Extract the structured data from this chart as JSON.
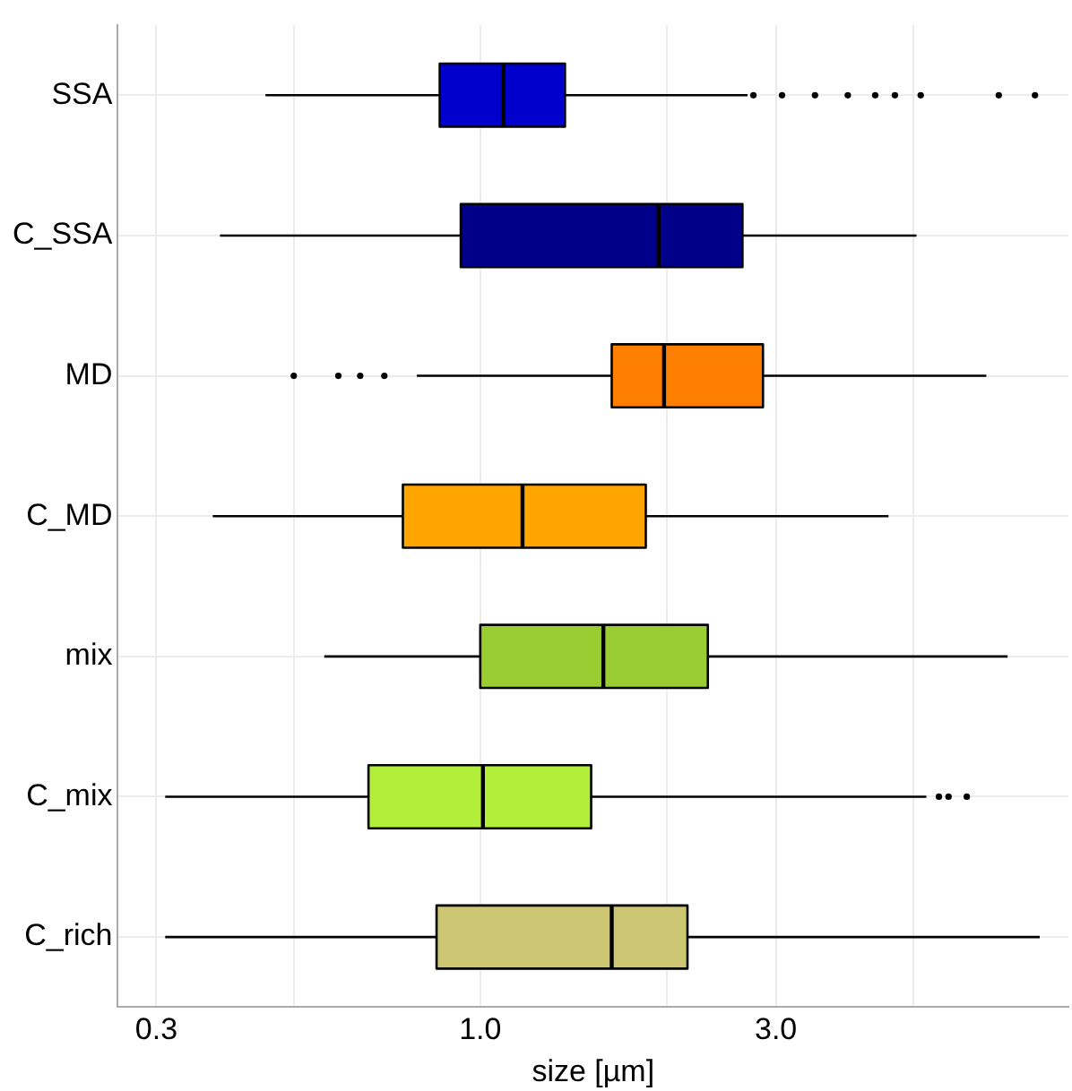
{
  "chart_data": {
    "type": "box",
    "orientation": "horizontal",
    "xlabel": "size [µm]",
    "log": "x",
    "grid": true,
    "legend": false,
    "categories": [
      "SSA",
      "C_SSA",
      "MD",
      "C_MD",
      "mix",
      "C_mix",
      "C_rich"
    ],
    "colors": [
      "#0000cd",
      "#00008b",
      "#ff7f00",
      "#ffa500",
      "#9acd32",
      "#b3ee3a",
      "#cdc673"
    ],
    "xlim": [
      0.26,
      8.9
    ],
    "xticks": [
      0.3,
      {
        "value": 0.5,
        "label": null
      },
      {
        "value": 1,
        "label": "1.0"
      },
      {
        "value": 2,
        "label": null
      },
      {
        "value": 3,
        "label": "3.0"
      },
      {
        "value": 5,
        "label": null
      }
    ],
    "boxes": [
      {
        "low": 0.45,
        "q1": 0.86,
        "median": 1.09,
        "q3": 1.37,
        "high": 2.7,
        "outliers": [
          2.76,
          3.07,
          3.47,
          3.92,
          4.34,
          4.67,
          5.14,
          6.87,
          7.86
        ]
      },
      {
        "low": 0.38,
        "q1": 0.93,
        "median": 1.94,
        "q3": 2.65,
        "high": 5.06
      },
      {
        "low": 0.79,
        "q1": 1.63,
        "median": 1.98,
        "q3": 2.86,
        "high": 6.56,
        "outliers": [
          0.5,
          0.59,
          0.64,
          0.7
        ]
      },
      {
        "low": 0.37,
        "q1": 0.75,
        "median": 1.17,
        "q3": 1.85,
        "high": 4.56
      },
      {
        "low": 0.56,
        "q1": 1.0,
        "median": 1.58,
        "q3": 2.33,
        "high": 7.1
      },
      {
        "low": 0.31,
        "q1": 0.66,
        "median": 1.01,
        "q3": 1.51,
        "high": 5.25,
        "outliers": [
          5.5,
          5.7,
          6.1
        ]
      },
      {
        "low": 0.31,
        "q1": 0.85,
        "median": 1.63,
        "q3": 2.16,
        "high": 8.0
      }
    ]
  }
}
